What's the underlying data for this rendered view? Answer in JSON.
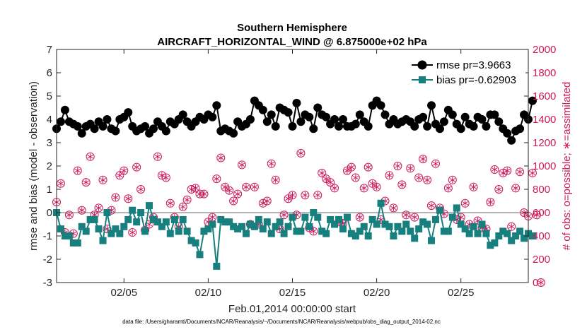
{
  "chart_data": {
    "type": "line",
    "title": "Southern Hemisphere",
    "subtitle": "AIRCRAFT_HORIZONTAL_WIND @ 6.875000e+02 hPa",
    "xlabel": "Feb.01,2014 00:00:00 start",
    "ylabel": "rmse and bias (model - observation)",
    "ylabel_right": "# of obs: o=possible; ∗=assimilated",
    "ylim": [
      -3,
      7
    ],
    "ylim_right": [
      0,
      2000
    ],
    "xlim": [
      1,
      29
    ],
    "x_tick_values": [
      5,
      10,
      15,
      20,
      25
    ],
    "x_tick_labels": [
      "02/05",
      "02/10",
      "02/15",
      "02/20",
      "02/25"
    ],
    "y_ticks": [
      -3,
      -2,
      -1,
      0,
      1,
      2,
      3,
      4,
      5,
      6,
      7
    ],
    "y_ticks_right": [
      0,
      200,
      400,
      600,
      800,
      1000,
      1200,
      1400,
      1600,
      1800,
      2000
    ],
    "legend_position": "top-right",
    "series": [
      {
        "name": "rmse pr=3.9663",
        "color": "#000000",
        "marker": "circle",
        "x_start": 1.0,
        "x_step": 0.25,
        "values": [
          3.6,
          3.9,
          4.4,
          3.9,
          3.8,
          3.7,
          3.4,
          3.7,
          3.8,
          3.6,
          3.9,
          3.7,
          4.0,
          3.6,
          3.5,
          4.0,
          4.1,
          4.3,
          3.7,
          3.5,
          3.6,
          3.7,
          3.4,
          3.6,
          3.9,
          3.7,
          3.5,
          3.9,
          3.8,
          4.0,
          4.2,
          3.9,
          3.7,
          3.9,
          4.1,
          4.0,
          4.2,
          4.1,
          4.6,
          3.5,
          3.6,
          3.5,
          3.4,
          3.9,
          3.7,
          3.8,
          4.0,
          4.8,
          4.6,
          4.4,
          3.9,
          4.2,
          3.7,
          4.5,
          4.4,
          4.3,
          3.7,
          4.7,
          3.9,
          4.2,
          4.1,
          3.6,
          4.5,
          4.2,
          4.1,
          3.8,
          4.0,
          3.7,
          4.0,
          3.7,
          3.7,
          3.8,
          4.2,
          3.9,
          3.7,
          4.6,
          4.8,
          4.6,
          4.2,
          3.8,
          4.0,
          3.8,
          3.9,
          4.0,
          3.9,
          3.7,
          4.0,
          4.1,
          3.7,
          4.6,
          3.8,
          3.6,
          3.9,
          4.4,
          4.2,
          3.8,
          3.6,
          4.1,
          3.8,
          3.7,
          4.1,
          4.0,
          3.7,
          4.2,
          4.2,
          3.9,
          3.6,
          3.4,
          3.1,
          3.5,
          3.6,
          4.2,
          4.0,
          4.8
        ]
      },
      {
        "name": "bias pr=-0.62903",
        "color": "#17807e",
        "marker": "square",
        "x_start": 1.0,
        "x_step": 0.25,
        "values": [
          0.0,
          -0.7,
          -1.0,
          -1.0,
          -1.3,
          -1.3,
          -0.6,
          -0.8,
          -0.3,
          -0.3,
          -0.7,
          -1.2,
          0.0,
          -0.9,
          -0.7,
          -0.9,
          -0.6,
          -0.3,
          0.1,
          -0.4,
          0.0,
          -0.8,
          0.3,
          -0.3,
          -0.4,
          -0.6,
          -0.4,
          -0.9,
          -0.3,
          -0.8,
          -0.3,
          -0.8,
          -1.2,
          -1.3,
          -1.8,
          -0.8,
          -0.7,
          -0.5,
          -2.3,
          -0.3,
          -0.4,
          -0.4,
          -0.6,
          -0.7,
          -0.6,
          -0.9,
          -0.5,
          -0.6,
          -0.3,
          -0.7,
          -0.4,
          -0.9,
          -0.6,
          -0.4,
          -0.9,
          -0.6,
          -0.2,
          -0.8,
          -0.8,
          -0.2,
          -0.6,
          0.0,
          -0.2,
          -0.8,
          -0.9,
          -0.3,
          -0.5,
          -0.3,
          -0.7,
          -0.2,
          -0.9,
          -1.0,
          -0.8,
          -0.6,
          -1.0,
          -0.3,
          -0.5,
          0.4,
          -0.5,
          -0.6,
          -1.0,
          -0.6,
          -0.8,
          -0.5,
          -0.8,
          -1.1,
          -0.7,
          -0.4,
          -0.5,
          -1.2,
          -0.3,
          0.1,
          -0.8,
          -0.8,
          -0.2,
          0.2,
          -0.5,
          -0.7,
          -0.9,
          -0.6,
          -0.9,
          -0.5,
          -0.9,
          -1.4,
          -1.3,
          -1.0,
          -0.8,
          -0.9,
          -1.2,
          -1.0,
          -0.8,
          -1.1,
          -0.9,
          -1.0
        ]
      },
      {
        "name": "obs possible",
        "color": "#cc1a5c",
        "marker": "circle-star",
        "axis": "right",
        "x_start": 1.0,
        "x_step": 0.25,
        "values": [
          690,
          850,
          430,
          580,
          420,
          960,
          620,
          860,
          1080,
          580,
          640,
          880,
          460,
          620,
          730,
          920,
          960,
          720,
          430,
          990,
          800,
          450,
          500,
          560,
          1080,
          920,
          900,
          680,
          560,
          480,
          650,
          710,
          800,
          810,
          760,
          760,
          520,
          560,
          890,
          1070,
          820,
          790,
          700,
          760,
          1010,
          820,
          500,
          820,
          500,
          680,
          700,
          1020,
          880,
          460,
          580,
          720,
          750,
          580,
          1110,
          750,
          470,
          440,
          750,
          940,
          890,
          860,
          810,
          520,
          510,
          960,
          990,
          900,
          560,
          810,
          990,
          850,
          820,
          540,
          700,
          920,
          640,
          1000,
          840,
          580,
          980,
          560,
          900,
          1060,
          880,
          660,
          1020,
          640,
          590,
          810,
          880,
          540,
          560,
          680,
          500,
          820,
          530,
          470,
          460,
          690,
          970,
          800,
          940,
          960,
          480,
          810,
          950,
          600,
          570,
          940,
          580,
          0
        ]
      }
    ]
  },
  "footer_note": "data file: /Users/gharamti/Documents/NCAR/Reanalysis/~/Documents/NCAR/Reanalysis/webpub/obs_diag_output_2014-02.nc"
}
